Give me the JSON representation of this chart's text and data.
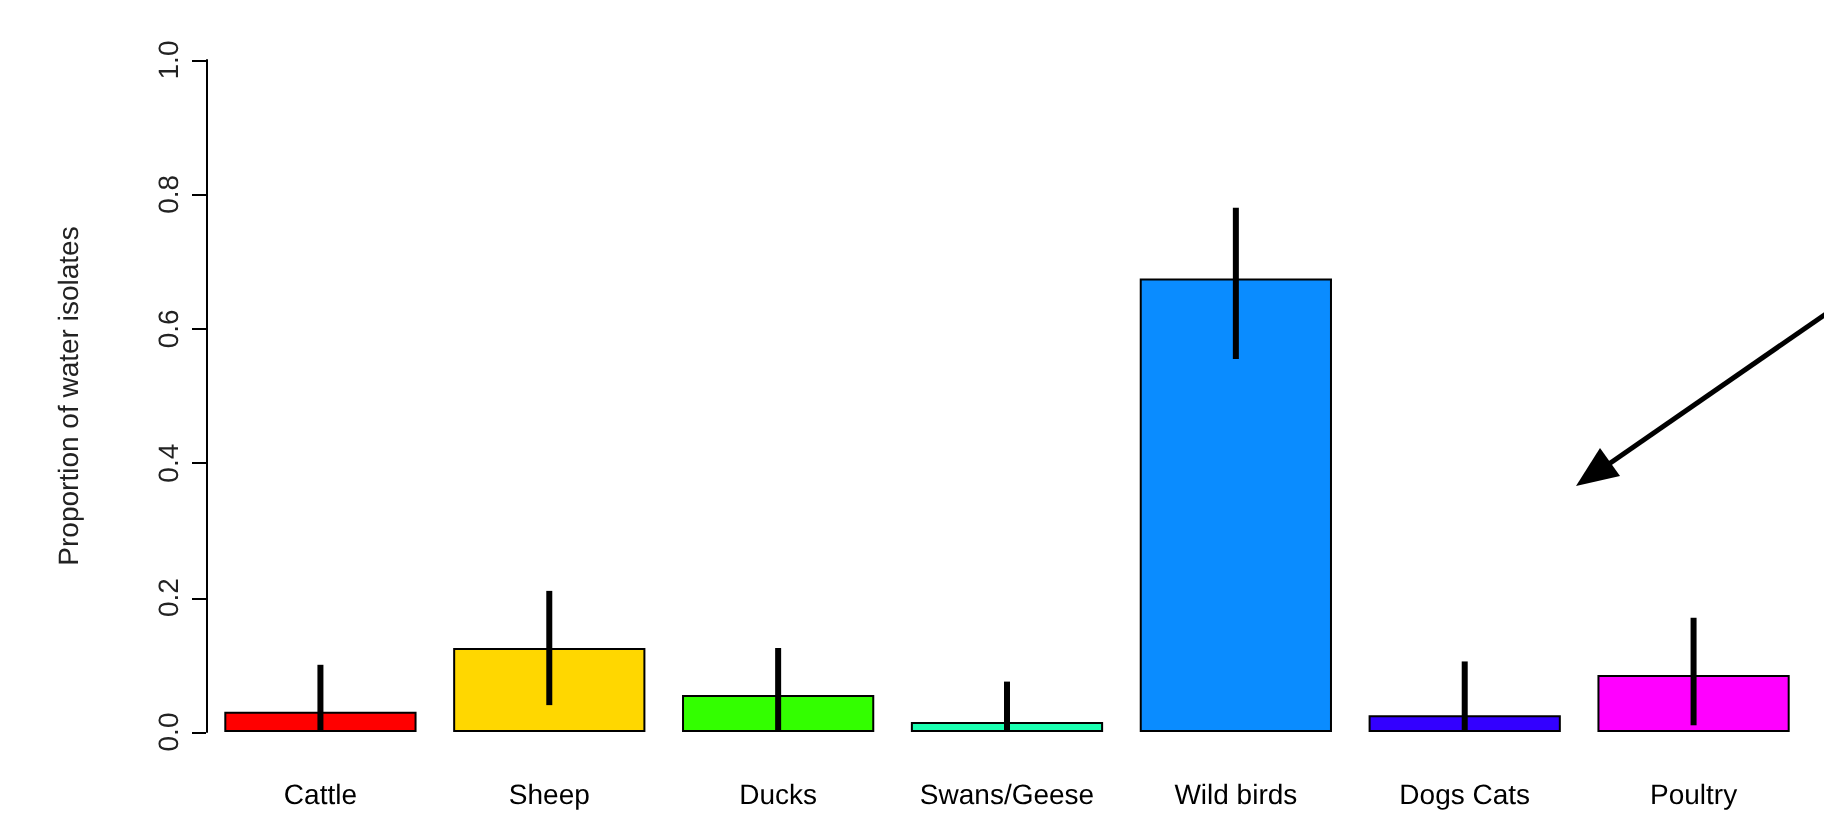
{
  "chart_data": {
    "type": "bar",
    "ylabel": "Proportion of water isolates",
    "categories": [
      "Cattle",
      "Sheep",
      "Ducks",
      "Swans/Geese",
      "Wild birds",
      "Dogs Cats",
      "Poultry"
    ],
    "values": [
      0.03,
      0.125,
      0.055,
      0.015,
      0.675,
      0.025,
      0.085
    ],
    "colors": [
      "#ff0000",
      "#ffd700",
      "#33ff00",
      "#1affb0",
      "#0a8cff",
      "#3300ff",
      "#ff00ff"
    ],
    "errors": [
      [
        0,
        0.1
      ],
      [
        0.04,
        0.21
      ],
      [
        0,
        0.125
      ],
      [
        0,
        0.075
      ],
      [
        0.555,
        0.78
      ],
      [
        0,
        0.105
      ],
      [
        0.01,
        0.17
      ]
    ],
    "ylim": [
      0,
      1
    ],
    "yticks": [
      {
        "value": 0,
        "label": "0.0"
      },
      0.2,
      0.4,
      0.6,
      0.8,
      {
        "value": 1,
        "label": "1.0"
      }
    ],
    "grid": false
  }
}
